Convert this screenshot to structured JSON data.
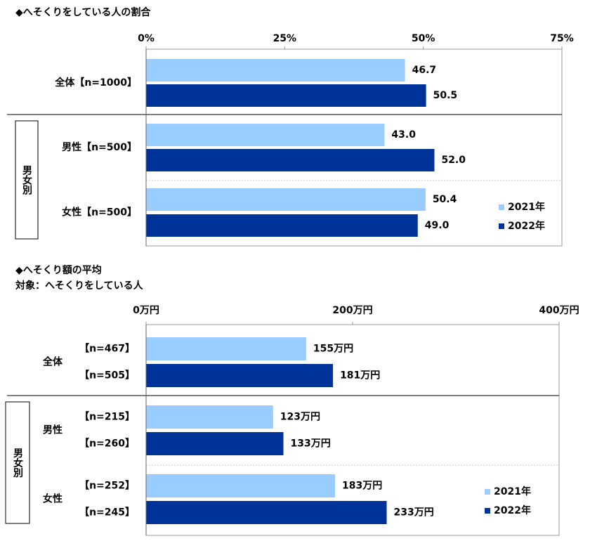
{
  "chart_data": [
    {
      "type": "bar",
      "orientation": "horizontal",
      "title": "◆へそくりをしている人の割合",
      "categories": [
        "全体【n=1000】",
        "男性【n=500】",
        "女性【n=500】"
      ],
      "group_label": "男女別",
      "series": [
        {
          "name": "2021年",
          "color": "#99ccff",
          "values": [
            46.7,
            43.0,
            50.4
          ],
          "value_labels": [
            "46.7",
            "43.0",
            "50.4"
          ]
        },
        {
          "name": "2022年",
          "color": "#003399",
          "values": [
            50.5,
            52.0,
            49.0
          ],
          "value_labels": [
            "50.5",
            "52.0",
            "49.0"
          ]
        }
      ],
      "xlim": [
        0,
        75
      ],
      "xticks": [
        {
          "value": 0,
          "label": "0%"
        },
        {
          "value": 25,
          "label": "25%"
        },
        {
          "value": 50,
          "label": "50%"
        },
        {
          "value": 75,
          "label": "75%"
        }
      ],
      "legend": "lower right"
    },
    {
      "type": "bar",
      "orientation": "horizontal",
      "title": "◆へそくり額の平均",
      "subtitle": "対象：へそくりをしている人",
      "categories": [
        "全体",
        "男性",
        "女性"
      ],
      "group_label": "男女別",
      "series": [
        {
          "name": "2021年",
          "color": "#99ccff",
          "values": [
            155,
            123,
            183
          ],
          "value_labels": [
            "155万円",
            "123万円",
            "183万円"
          ],
          "sample_labels": [
            "【n=467】",
            "【n=215】",
            "【n=252】"
          ]
        },
        {
          "name": "2022年",
          "color": "#003399",
          "values": [
            181,
            133,
            233
          ],
          "value_labels": [
            "181万円",
            "133万円",
            "233万円"
          ],
          "sample_labels": [
            "【n=505】",
            "【n=260】",
            "【n=245】"
          ]
        }
      ],
      "xlim": [
        0,
        400
      ],
      "xticks": [
        {
          "value": 0,
          "label": "0万円"
        },
        {
          "value": 200,
          "label": "200万円"
        },
        {
          "value": 400,
          "label": "400万円"
        }
      ],
      "legend": "lower right"
    }
  ]
}
